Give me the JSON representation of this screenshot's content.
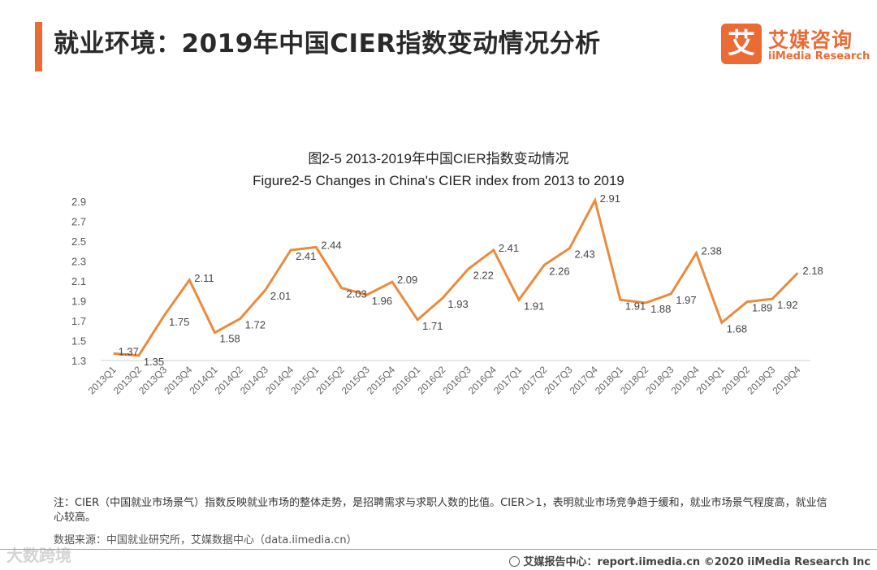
{
  "header": {
    "title": "就业环境：2019年中国CIER指数变动情况分析",
    "logo_mark": "艾",
    "logo_cn": "艾媒咨询",
    "logo_en": "iiMedia Research"
  },
  "chart_data": {
    "type": "line",
    "title": "图2-5 2013-2019年中国CIER指数变动情况",
    "subtitle": "Figure2-5 Changes in China's CIER index from 2013 to 2019",
    "xlabel": "",
    "ylabel": "",
    "ylim": [
      1.3,
      2.9
    ],
    "yticks": [
      "1.3",
      "1.5",
      "1.7",
      "1.9",
      "2.1",
      "2.3",
      "2.5",
      "2.7",
      "2.9"
    ],
    "grid": false,
    "line_color": "#ec8a3c",
    "categories": [
      "2013Q1",
      "2013Q2",
      "2013Q3",
      "2013Q4",
      "2014Q1",
      "2014Q2",
      "2014Q3",
      "2014Q4",
      "2015Q1",
      "2015Q2",
      "2015Q3",
      "2015Q4",
      "2016Q1",
      "2016Q2",
      "2016Q3",
      "2016Q4",
      "2017Q1",
      "2017Q2",
      "2017Q3",
      "2017Q4",
      "2018Q1",
      "2018Q2",
      "2018Q3",
      "2018Q4",
      "2019Q1",
      "2019Q2",
      "2019Q3",
      "2019Q4"
    ],
    "series": [
      {
        "values": [
          1.37,
          1.35,
          1.75,
          2.11,
          1.58,
          1.72,
          2.01,
          2.41,
          2.44,
          2.03,
          1.96,
          2.09,
          1.71,
          1.93,
          2.22,
          2.41,
          1.91,
          2.26,
          2.43,
          2.91,
          1.91,
          1.88,
          1.97,
          2.38,
          1.68,
          1.89,
          1.92,
          2.18
        ]
      }
    ],
    "data_labels": [
      "1.37",
      "1.35",
      "1.75",
      "2.11",
      "1.58",
      "1.72",
      "2.01",
      "2.41",
      "2.44",
      "2.03",
      "1.96",
      "2.09",
      "1.71",
      "1.93",
      "2.22",
      "2.41",
      "1.91",
      "2.26",
      "2.43",
      "2.91",
      "1.91",
      "1.88",
      "1.97",
      "2.38",
      "1.68",
      "1.89",
      "1.92",
      "2.18"
    ]
  },
  "note": "注：CIER（中国就业市场景气）指数反映就业市场的整体走势，是招聘需求与求职人数的比值。CIER＞1，表明就业市场竞争趋于缓和，就业市场景气程度高，就业信心较高。",
  "source": "数据来源：中国就业研究所，艾媒数据中心（data.iimedia.cn）",
  "watermark": "大数跨境",
  "footer": "艾媒报告中心：report.iimedia.cn  ©2020  iiMedia Research  Inc"
}
